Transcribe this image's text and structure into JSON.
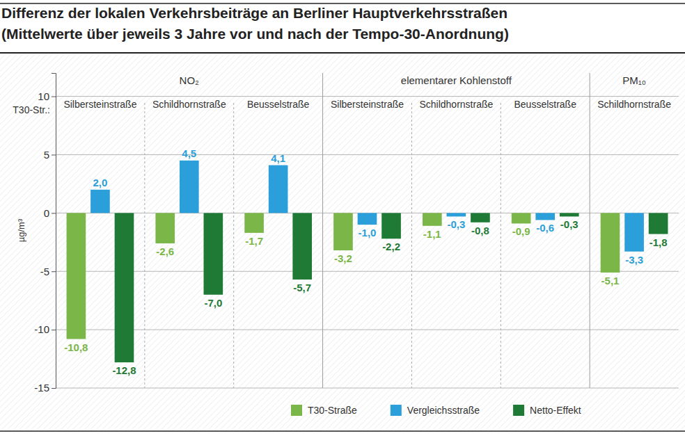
{
  "chart_data": {
    "type": "bar",
    "title": "Differenz der lokalen Verkehrsbeiträge an Berliner Hauptverkehrsstraßen",
    "subtitle": "(Mittelwerte über jeweils 3 Jahre vor und nach der Tempo-30-Anordnung)",
    "ylabel": "µg/m³",
    "xlabel": "T30-Str.:",
    "categories": [
      "Silbersteinstraße",
      "Schildhornstraße",
      "Beusselstraße",
      "Silbersteinstraße",
      "Schildhornstraße",
      "Beusselstraße",
      "Schildhornstraße"
    ],
    "category_groups": [
      "NO₂",
      "NO₂",
      "NO₂",
      "elementarer Kohlenstoff",
      "elementarer Kohlenstoff",
      "elementarer Kohlenstoff",
      "PM₁₀"
    ],
    "series": [
      {
        "name": "T30-Straße",
        "color": "#7ab648",
        "values": [
          -10.8,
          -2.6,
          -1.7,
          -3.2,
          -1.1,
          -0.9,
          -5.1
        ],
        "value_labels": [
          "-10,8",
          "-2,6",
          "-1,7",
          "-3,2",
          "-1,1",
          "-0,9",
          "-5,1"
        ]
      },
      {
        "name": "Vergleichsstraße",
        "color": "#2b9fd9",
        "values": [
          2.0,
          4.5,
          4.1,
          -1.0,
          -0.3,
          -0.6,
          -3.3
        ],
        "value_labels": [
          "2,0",
          "4,5",
          "4,1",
          "-1,0",
          "-0,3",
          "-0,6",
          "-3,3"
        ]
      },
      {
        "name": "Netto-Effekt",
        "color": "#1f7a35",
        "values": [
          -12.8,
          -7.0,
          -5.7,
          -2.2,
          -0.8,
          -0.3,
          -1.8
        ],
        "value_labels": [
          "-12,8",
          "-7,0",
          "-5,7",
          "-2,2",
          "-0,8",
          "-0,3",
          "-1,8"
        ]
      }
    ],
    "ylim": [
      -15,
      12
    ],
    "yticks": [
      -15,
      -10,
      -5,
      0,
      5,
      10
    ],
    "grid": true,
    "data_labels": true,
    "legend": "bottom"
  }
}
